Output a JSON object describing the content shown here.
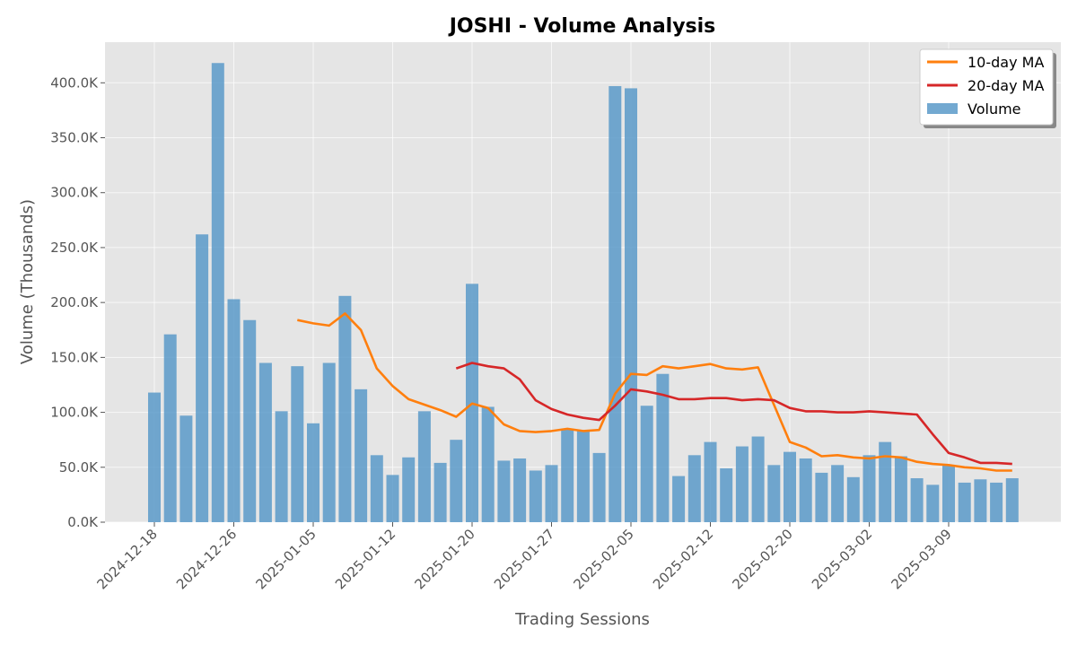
{
  "chart_data": {
    "type": "bar",
    "title": "JOSHI - Volume Analysis",
    "xlabel": "Trading Sessions",
    "ylabel": "Volume (Thousands)",
    "ylim": [
      0,
      437000
    ],
    "y_ticks": [
      0,
      50000,
      100000,
      150000,
      200000,
      250000,
      300000,
      350000,
      400000
    ],
    "y_tick_labels": [
      "0.0K",
      "50.0K",
      "100.0K",
      "150.0K",
      "200.0K",
      "250.0K",
      "300.0K",
      "350.0K",
      "400.0K"
    ],
    "x_ticks": [
      {
        "index": 0,
        "label": "2024-12-18"
      },
      {
        "index": 5,
        "label": "2024-12-26"
      },
      {
        "index": 10,
        "label": "2025-01-05"
      },
      {
        "index": 15,
        "label": "2025-01-12"
      },
      {
        "index": 20,
        "label": "2025-01-20"
      },
      {
        "index": 25,
        "label": "2025-01-27"
      },
      {
        "index": 30,
        "label": "2025-02-05"
      },
      {
        "index": 35,
        "label": "2025-02-12"
      },
      {
        "index": 40,
        "label": "2025-02-20"
      },
      {
        "index": 45,
        "label": "2025-03-02"
      },
      {
        "index": 50,
        "label": "2025-03-09"
      }
    ],
    "grid": true,
    "legend_position": "top-right",
    "series": [
      {
        "name": "Volume",
        "kind": "bar",
        "color": "#5a9ac9",
        "values": [
          118000,
          171000,
          97000,
          262000,
          418000,
          203000,
          184000,
          145000,
          101000,
          142000,
          90000,
          145000,
          206000,
          121000,
          61000,
          43000,
          59000,
          101000,
          54000,
          75000,
          217000,
          105000,
          56000,
          58000,
          47000,
          52000,
          85000,
          84000,
          63000,
          397000,
          395000,
          106000,
          135000,
          42000,
          61000,
          73000,
          49000,
          69000,
          78000,
          52000,
          64000,
          58000,
          45000,
          52000,
          41000,
          61000,
          73000,
          60000,
          40000,
          34000,
          52000,
          36000,
          39000,
          36000,
          40000
        ]
      },
      {
        "name": "10-day MA",
        "kind": "line",
        "color": "#ff7f0e",
        "values": [
          null,
          null,
          null,
          null,
          null,
          null,
          null,
          null,
          null,
          184000,
          181000,
          179000,
          190000,
          175000,
          140000,
          124000,
          112000,
          107000,
          102000,
          96000,
          108000,
          104000,
          89000,
          83000,
          82000,
          83000,
          85000,
          83000,
          84000,
          117000,
          135000,
          134000,
          142000,
          140000,
          142000,
          144000,
          140000,
          139000,
          141000,
          107000,
          73000,
          68000,
          60000,
          61000,
          59000,
          58000,
          60000,
          59000,
          55000,
          53000,
          52000,
          50000,
          49000,
          47000,
          47000
        ]
      },
      {
        "name": "20-day MA",
        "kind": "line",
        "color": "#d62728",
        "values": [
          null,
          null,
          null,
          null,
          null,
          null,
          null,
          null,
          null,
          null,
          null,
          null,
          null,
          null,
          null,
          null,
          null,
          null,
          null,
          140000,
          145000,
          142000,
          140000,
          130000,
          111000,
          103000,
          98000,
          95000,
          93000,
          106000,
          121000,
          119000,
          116000,
          112000,
          112000,
          113000,
          113000,
          111000,
          112000,
          111000,
          104000,
          101000,
          101000,
          100000,
          100000,
          101000,
          100000,
          99000,
          98000,
          80000,
          63000,
          59000,
          54000,
          54000,
          53000
        ]
      }
    ]
  }
}
